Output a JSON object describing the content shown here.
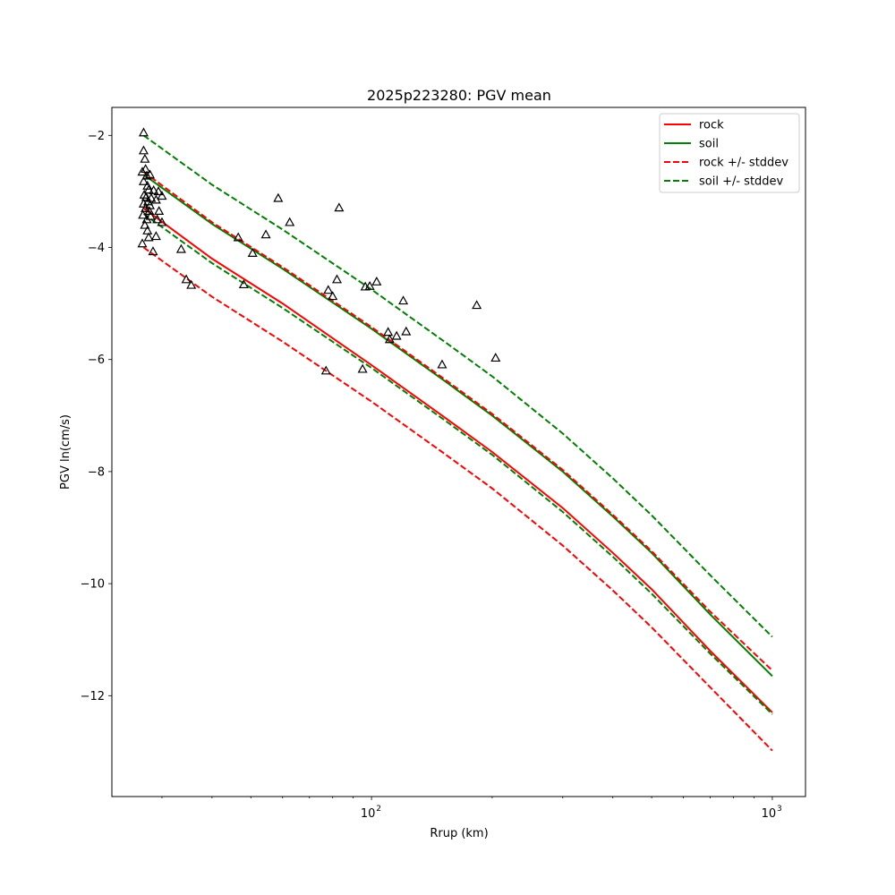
{
  "chart_data": {
    "type": "line",
    "title": "2025p223280: PGV mean",
    "xlabel": "Rrup (km)",
    "ylabel": "PGV ln(cm/s)",
    "x_scale": "log",
    "xlim": [
      22.5,
      1210
    ],
    "ylim": [
      -13.8,
      -1.5
    ],
    "grid": false,
    "legend_position": "upper right",
    "x_ticks": [
      {
        "value": 100,
        "base": "10",
        "exp": "2"
      },
      {
        "value": 1000,
        "base": "10",
        "exp": "3"
      }
    ],
    "y_ticks": [
      {
        "value": -2,
        "label": "−2"
      },
      {
        "value": -4,
        "label": "−4"
      },
      {
        "value": -6,
        "label": "−6"
      },
      {
        "value": -8,
        "label": "−8"
      },
      {
        "value": -10,
        "label": "−10"
      },
      {
        "value": -12,
        "label": "−12"
      }
    ],
    "x": [
      27,
      40,
      60,
      100,
      150,
      200,
      300,
      400,
      500,
      700,
      1000
    ],
    "series": [
      {
        "name": "rock",
        "color": "#ff0000",
        "style": "solid",
        "values": [
          -3.3,
          -4.2,
          -5.0,
          -6.1,
          -7.0,
          -7.65,
          -8.65,
          -9.45,
          -10.1,
          -11.2,
          -12.3
        ]
      },
      {
        "name": "soil",
        "color": "#008000",
        "style": "solid",
        "values": [
          -2.7,
          -3.58,
          -4.38,
          -5.45,
          -6.35,
          -7.0,
          -8.0,
          -8.8,
          -9.45,
          -10.55,
          -11.65
        ]
      },
      {
        "name": "rock +/- stddev",
        "color": "#ff0000",
        "style": "dashed",
        "values": [
          -2.65,
          -3.55,
          -4.35,
          -5.42,
          -6.32,
          -6.97,
          -7.97,
          -8.77,
          -9.42,
          -10.5,
          -11.55
        ]
      },
      {
        "name": "",
        "color": "#ff0000",
        "style": "dashed",
        "values": [
          -4.0,
          -4.88,
          -5.68,
          -6.75,
          -7.65,
          -8.3,
          -9.32,
          -10.12,
          -10.78,
          -11.85,
          -12.98
        ]
      },
      {
        "name": "soil +/- stddev",
        "color": "#008000",
        "style": "dashed",
        "values": [
          -2.0,
          -2.88,
          -3.68,
          -4.75,
          -5.65,
          -6.3,
          -7.32,
          -8.12,
          -8.78,
          -9.85,
          -10.95
        ]
      },
      {
        "name": "",
        "color": "#008000",
        "style": "dashed",
        "values": [
          -3.4,
          -4.28,
          -5.08,
          -6.15,
          -7.05,
          -7.7,
          -8.72,
          -9.52,
          -10.18,
          -11.25,
          -12.33
        ]
      }
    ],
    "observations": {
      "marker": "triangle",
      "points": [
        [
          27,
          -1.95
        ],
        [
          27,
          -2.27
        ],
        [
          27.2,
          -2.42
        ],
        [
          27.3,
          -2.6
        ],
        [
          26.8,
          -2.65
        ],
        [
          27.5,
          -2.72
        ],
        [
          28,
          -2.7
        ],
        [
          27,
          -2.82
        ],
        [
          27.6,
          -2.9
        ],
        [
          27.8,
          -2.97
        ],
        [
          28.6,
          -2.98
        ],
        [
          29.4,
          -3.0
        ],
        [
          30,
          -3.08
        ],
        [
          27.1,
          -3.06
        ],
        [
          27.4,
          -3.1
        ],
        [
          28.2,
          -3.12
        ],
        [
          29,
          -3.15
        ],
        [
          27.7,
          -3.18
        ],
        [
          27,
          -3.22
        ],
        [
          28,
          -3.25
        ],
        [
          27.3,
          -3.3
        ],
        [
          27.9,
          -3.35
        ],
        [
          29.5,
          -3.35
        ],
        [
          26.9,
          -3.42
        ],
        [
          28.1,
          -3.44
        ],
        [
          27.5,
          -3.5
        ],
        [
          29.2,
          -3.5
        ],
        [
          30,
          -3.55
        ],
        [
          27.2,
          -3.6
        ],
        [
          27.6,
          -3.7
        ],
        [
          29,
          -3.8
        ],
        [
          27.8,
          -3.82
        ],
        [
          26.8,
          -3.93
        ],
        [
          28.5,
          -4.07
        ],
        [
          33.5,
          -4.03
        ],
        [
          34.5,
          -4.57
        ],
        [
          35.5,
          -4.67
        ],
        [
          46.5,
          -3.82
        ],
        [
          48,
          -4.66
        ],
        [
          50.5,
          -4.1
        ],
        [
          54.5,
          -3.77
        ],
        [
          58.5,
          -3.12
        ],
        [
          62.5,
          -3.55
        ],
        [
          77,
          -6.2
        ],
        [
          78,
          -4.76
        ],
        [
          80,
          -4.87
        ],
        [
          82,
          -4.57
        ],
        [
          83,
          -3.29
        ],
        [
          95,
          -6.17
        ],
        [
          96.5,
          -4.7
        ],
        [
          99,
          -4.69
        ],
        [
          103,
          -4.61
        ],
        [
          110,
          -5.51
        ],
        [
          111,
          -5.64
        ],
        [
          115.5,
          -5.58
        ],
        [
          120,
          -4.95
        ],
        [
          122,
          -5.5
        ],
        [
          150,
          -6.09
        ],
        [
          183,
          -5.03
        ],
        [
          204,
          -5.97
        ]
      ]
    }
  }
}
